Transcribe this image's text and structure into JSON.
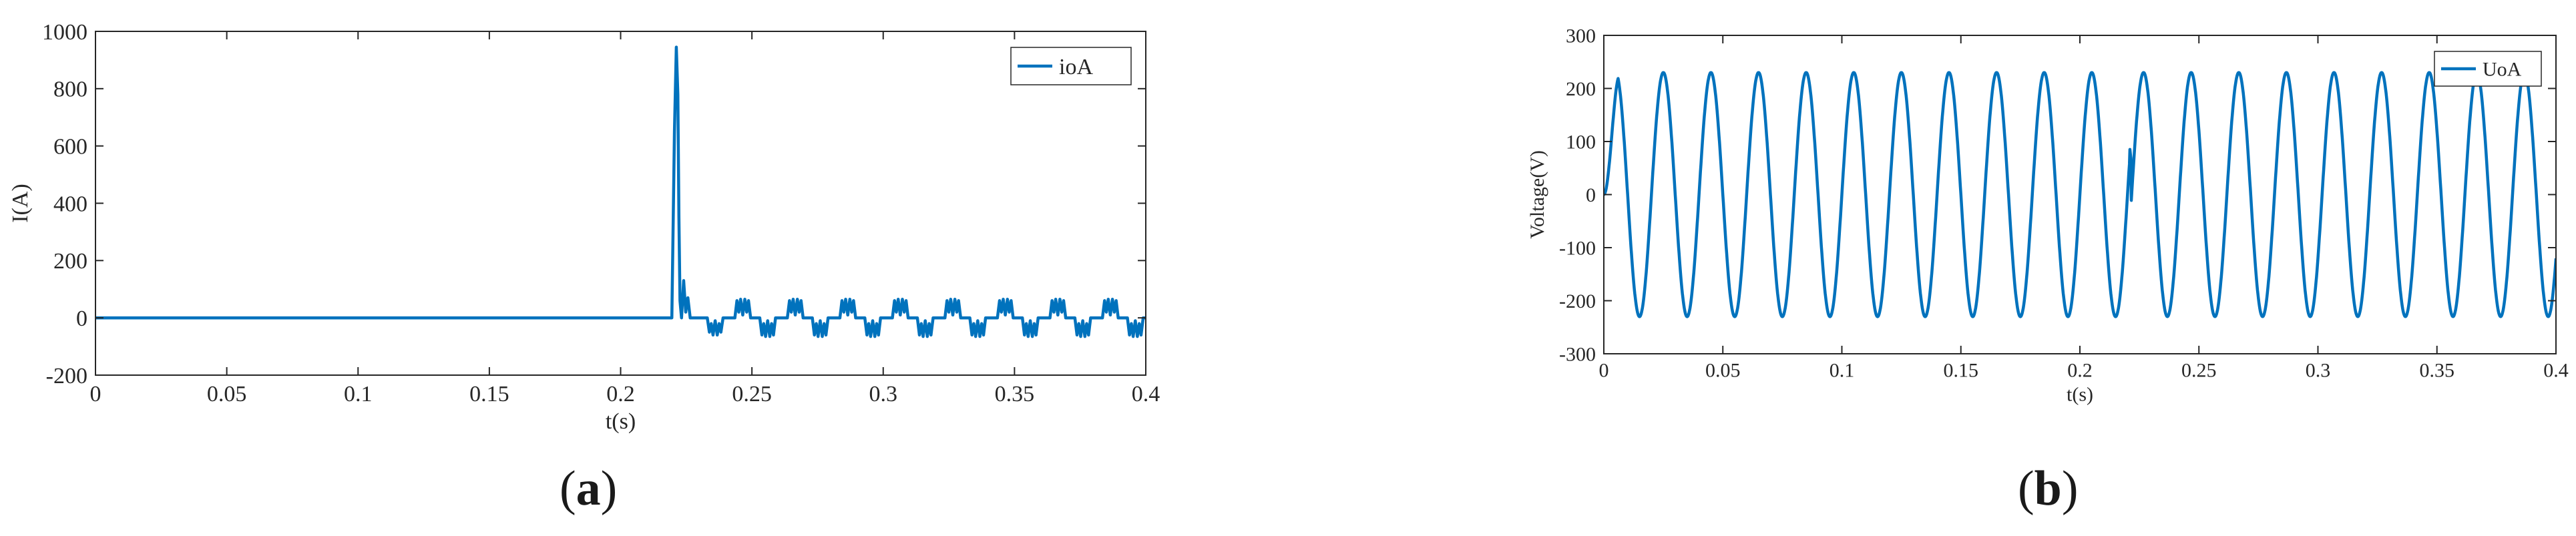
{
  "chart_data": [
    {
      "type": "line",
      "panel_label": "a",
      "xlabel": "t(s)",
      "ylabel": "I(A)",
      "xlim": [
        0,
        0.4
      ],
      "ylim": [
        -200,
        1000
      ],
      "xticks": [
        0,
        0.05,
        0.1,
        0.15,
        0.2,
        0.25,
        0.3,
        0.35,
        0.4
      ],
      "yticks": [
        -200,
        0,
        200,
        400,
        600,
        800,
        1000
      ],
      "xtick_labels": [
        "0",
        "0.05",
        "0.1",
        "0.15",
        "0.2",
        "0.25",
        "0.3",
        "0.35",
        "0.4"
      ],
      "ytick_labels": [
        "-200",
        "0",
        "200",
        "400",
        "600",
        "800",
        "1000"
      ],
      "grid": false,
      "legend_position": "top-right",
      "series": [
        {
          "name": "ioA",
          "color": "#0072bd",
          "x": [
            0,
            0.2195,
            0.2205,
            0.2212,
            0.2218,
            0.2222,
            0.2226,
            0.2232,
            0.224,
            0.2248,
            0.2256,
            0.2265,
            0.2275,
            0.229,
            0.2305,
            0.233,
            0.2338,
            0.2345,
            0.2352,
            0.236,
            0.2368,
            0.2375,
            0.2382,
            0.239,
            0.2435,
            0.2443,
            0.245,
            0.2457,
            0.2465,
            0.2473,
            0.248,
            0.2487,
            0.2495,
            0.253,
            0.2538,
            0.2545,
            0.2552,
            0.256,
            0.2568,
            0.2575,
            0.2582,
            0.259,
            0.2635,
            0.2643,
            0.265,
            0.2657,
            0.2665,
            0.2673,
            0.268,
            0.2687,
            0.2695,
            0.273,
            0.2738,
            0.2745,
            0.2752,
            0.276,
            0.2768,
            0.2775,
            0.2782,
            0.279,
            0.2835,
            0.2843,
            0.285,
            0.2857,
            0.2865,
            0.2873,
            0.288,
            0.2887,
            0.2895,
            0.293,
            0.2938,
            0.2945,
            0.2952,
            0.296,
            0.2968,
            0.2975,
            0.2982,
            0.299,
            0.3035,
            0.3043,
            0.305,
            0.3057,
            0.3065,
            0.3073,
            0.308,
            0.3087,
            0.3095,
            0.313,
            0.3138,
            0.3145,
            0.3152,
            0.316,
            0.3168,
            0.3175,
            0.3182,
            0.319,
            0.3235,
            0.3243,
            0.325,
            0.3257,
            0.3265,
            0.3273,
            0.328,
            0.3287,
            0.3295,
            0.333,
            0.3338,
            0.3345,
            0.3352,
            0.336,
            0.3368,
            0.3375,
            0.3382,
            0.339,
            0.3435,
            0.3443,
            0.345,
            0.3457,
            0.3465,
            0.3473,
            0.348,
            0.3487,
            0.3495,
            0.353,
            0.3538,
            0.3545,
            0.3552,
            0.356,
            0.3568,
            0.3575,
            0.3582,
            0.359,
            0.3635,
            0.3643,
            0.365,
            0.3657,
            0.3665,
            0.3673,
            0.368,
            0.3687,
            0.3695,
            0.373,
            0.3738,
            0.3745,
            0.3752,
            0.376,
            0.3768,
            0.3775,
            0.3782,
            0.379,
            0.3835,
            0.3843,
            0.385,
            0.3857,
            0.3865,
            0.3873,
            0.388,
            0.3887,
            0.3895,
            0.393,
            0.3938,
            0.3945,
            0.3952,
            0.396,
            0.3968,
            0.3975,
            0.3982,
            0.399,
            0.4
          ],
          "y": [
            0,
            0,
            650,
            945,
            780,
            350,
            60,
            0,
            130,
            20,
            70,
            0,
            0,
            0,
            0,
            0,
            -50,
            -20,
            -60,
            -10,
            -60,
            -20,
            -50,
            0,
            0,
            60,
            20,
            65,
            10,
            65,
            20,
            60,
            0,
            0,
            -60,
            -20,
            -65,
            -10,
            -65,
            -20,
            -60,
            0,
            0,
            60,
            20,
            65,
            10,
            65,
            20,
            60,
            0,
            0,
            -60,
            -20,
            -65,
            -10,
            -65,
            -20,
            -60,
            0,
            0,
            60,
            20,
            65,
            10,
            65,
            20,
            60,
            0,
            0,
            -60,
            -20,
            -65,
            -10,
            -65,
            -20,
            -60,
            0,
            0,
            60,
            20,
            65,
            10,
            65,
            20,
            60,
            0,
            0,
            -60,
            -20,
            -65,
            -10,
            -65,
            -20,
            -60,
            0,
            0,
            60,
            20,
            65,
            10,
            65,
            20,
            60,
            0,
            0,
            -60,
            -20,
            -65,
            -10,
            -65,
            -20,
            -60,
            0,
            0,
            60,
            20,
            65,
            10,
            65,
            20,
            60,
            0,
            0,
            -60,
            -20,
            -65,
            -10,
            -65,
            -20,
            -60,
            0,
            0,
            60,
            20,
            65,
            10,
            65,
            20,
            60,
            0,
            0,
            -60,
            -20,
            -65,
            -10,
            -65,
            -20,
            -60,
            0,
            0,
            60,
            20,
            65,
            10,
            65,
            20,
            60,
            0,
            0,
            -60,
            -20,
            -65,
            -10,
            -65,
            -20,
            -60,
            0,
            0
          ]
        }
      ]
    },
    {
      "type": "line",
      "panel_label": "b",
      "xlabel": "t(s)",
      "ylabel": "Voltage(V)",
      "xlim": [
        0,
        0.4
      ],
      "ylim": [
        -300,
        300
      ],
      "xticks": [
        0,
        0.05,
        0.1,
        0.15,
        0.2,
        0.25,
        0.3,
        0.35,
        0.4
      ],
      "yticks": [
        -300,
        -200,
        -100,
        0,
        100,
        200,
        300
      ],
      "xtick_labels": [
        "0",
        "0.05",
        "0.1",
        "0.15",
        "0.2",
        "0.25",
        "0.3",
        "0.35",
        "0.4"
      ],
      "ytick_labels": [
        "-300",
        "-200",
        "-100",
        "0",
        "100",
        "200",
        "300"
      ],
      "grid": false,
      "legend_position": "top-right",
      "series": [
        {
          "name": "UoA",
          "color": "#0072bd",
          "waveform": "sinusoid",
          "frequency_hz": 50,
          "amplitude": 230,
          "transient_at": 0.221,
          "x": [
            0,
            0.005,
            0.01,
            0.015,
            0.02,
            0.025,
            0.03,
            0.035,
            0.04,
            0.045,
            0.05,
            0.055,
            0.06,
            0.065,
            0.07,
            0.075,
            0.08,
            0.085,
            0.09,
            0.095,
            0.1,
            0.105,
            0.11,
            0.115,
            0.12,
            0.125,
            0.13,
            0.135,
            0.14,
            0.145,
            0.15,
            0.155,
            0.16,
            0.165,
            0.17,
            0.175,
            0.18,
            0.185,
            0.19,
            0.195,
            0.2,
            0.205,
            0.21,
            0.215,
            0.22,
            0.2212,
            0.2215,
            0.225,
            0.23,
            0.235,
            0.24,
            0.245,
            0.25,
            0.255,
            0.26,
            0.265,
            0.27,
            0.275,
            0.28,
            0.285,
            0.29,
            0.295,
            0.3,
            0.305,
            0.31,
            0.315,
            0.32,
            0.325,
            0.33,
            0.335,
            0.34,
            0.345,
            0.35,
            0.355,
            0.36,
            0.365,
            0.37,
            0.375,
            0.38,
            0.385,
            0.39,
            0.395,
            0.4
          ],
          "y": [
            0,
            210,
            0,
            -235,
            0,
            230,
            0,
            -230,
            0,
            230,
            0,
            -230,
            0,
            230,
            0,
            -230,
            0,
            230,
            0,
            -230,
            0,
            230,
            0,
            -230,
            0,
            230,
            0,
            -230,
            0,
            230,
            0,
            -230,
            0,
            230,
            0,
            -230,
            0,
            230,
            0,
            -230,
            0,
            230,
            0,
            -230,
            0,
            85,
            0,
            200,
            0,
            -230,
            0,
            230,
            0,
            -230,
            0,
            230,
            0,
            -230,
            0,
            230,
            0,
            -230,
            0,
            230,
            0,
            -230,
            0,
            230,
            0,
            -230,
            0,
            230,
            0,
            -230,
            0,
            230,
            0,
            -230,
            0,
            230,
            0,
            -230,
            0
          ]
        }
      ]
    }
  ]
}
